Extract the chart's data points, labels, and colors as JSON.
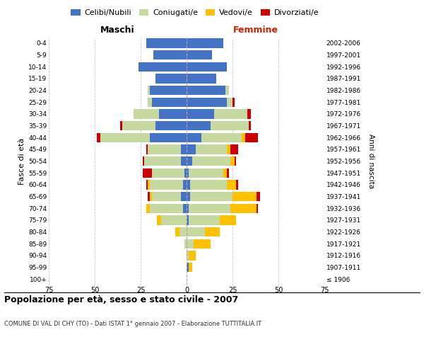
{
  "age_groups": [
    "100+",
    "95-99",
    "90-94",
    "85-89",
    "80-84",
    "75-79",
    "70-74",
    "65-69",
    "60-64",
    "55-59",
    "50-54",
    "45-49",
    "40-44",
    "35-39",
    "30-34",
    "25-29",
    "20-24",
    "15-19",
    "10-14",
    "5-9",
    "0-4"
  ],
  "birth_years": [
    "≤ 1906",
    "1907-1911",
    "1912-1916",
    "1917-1921",
    "1922-1926",
    "1927-1931",
    "1932-1936",
    "1937-1941",
    "1942-1946",
    "1947-1951",
    "1952-1956",
    "1957-1961",
    "1962-1966",
    "1967-1971",
    "1972-1976",
    "1977-1981",
    "1982-1986",
    "1987-1991",
    "1992-1996",
    "1997-2001",
    "2002-2006"
  ],
  "colors": {
    "celibi": "#4472c4",
    "coniugati": "#c5d9a0",
    "vedovi": "#ffc000",
    "divorziati": "#cc0000"
  },
  "maschi": {
    "celibi": [
      0,
      0,
      0,
      0,
      0,
      0,
      2,
      3,
      2,
      1,
      3,
      3,
      20,
      17,
      15,
      19,
      20,
      17,
      26,
      18,
      22
    ],
    "coniugati": [
      0,
      0,
      0,
      1,
      4,
      14,
      18,
      16,
      18,
      18,
      20,
      18,
      27,
      18,
      14,
      2,
      1,
      0,
      0,
      0,
      0
    ],
    "vedovi": [
      0,
      0,
      0,
      0,
      2,
      2,
      2,
      1,
      1,
      0,
      0,
      0,
      0,
      0,
      0,
      0,
      0,
      0,
      0,
      0,
      0
    ],
    "divorziati": [
      0,
      0,
      0,
      0,
      0,
      0,
      0,
      1,
      1,
      5,
      1,
      1,
      2,
      1,
      0,
      0,
      0,
      0,
      0,
      0,
      0
    ]
  },
  "femmine": {
    "celibi": [
      0,
      1,
      0,
      0,
      0,
      1,
      1,
      2,
      2,
      1,
      3,
      5,
      8,
      13,
      15,
      22,
      21,
      16,
      22,
      14,
      20
    ],
    "coniugati": [
      0,
      0,
      1,
      4,
      10,
      17,
      23,
      23,
      20,
      19,
      21,
      17,
      22,
      21,
      18,
      3,
      2,
      0,
      0,
      0,
      0
    ],
    "vedovi": [
      0,
      2,
      4,
      9,
      8,
      9,
      14,
      13,
      5,
      2,
      2,
      2,
      2,
      0,
      0,
      0,
      0,
      0,
      0,
      0,
      0
    ],
    "divorziati": [
      0,
      0,
      0,
      0,
      0,
      0,
      1,
      2,
      1,
      1,
      1,
      4,
      7,
      1,
      2,
      1,
      0,
      0,
      0,
      0,
      0
    ]
  },
  "xlim": 75,
  "title": "Popolazione per età, sesso e stato civile - 2007",
  "subtitle": "COMUNE DI VAL DI CHY (TO) - Dati ISTAT 1° gennaio 2007 - Elaborazione TUTTITALIA.IT",
  "xlabel_left": "Maschi",
  "xlabel_right": "Femmine",
  "ylabel_left": "Fasce di età",
  "ylabel_right": "Anni di nascita",
  "legend_labels": [
    "Celibi/Nubili",
    "Coniugati/e",
    "Vedovi/e",
    "Divorziati/e"
  ],
  "bg_color": "#ffffff",
  "grid_color": "#cccccc",
  "bar_height": 0.8
}
